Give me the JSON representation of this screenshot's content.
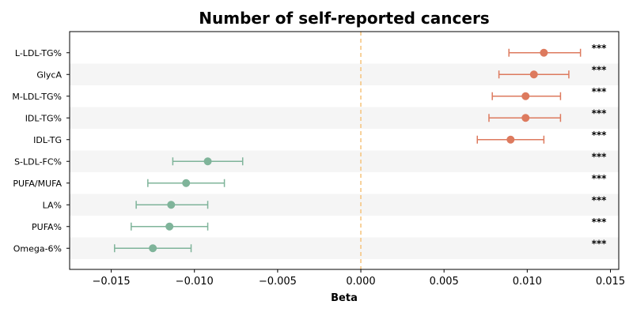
{
  "chart_data": {
    "type": "scatter",
    "title": "Number of self-reported cancers",
    "xlabel": "Beta",
    "ylabel": "",
    "xlim": [
      -0.0175,
      0.0155
    ],
    "x_ticks": [
      -0.015,
      -0.01,
      -0.005,
      0.0,
      0.005,
      0.01,
      0.015
    ],
    "x_tick_labels": [
      "−0.015",
      "−0.010",
      "−0.005",
      "0.000",
      "0.005",
      "0.010",
      "0.015"
    ],
    "reference_line": 0.0,
    "grid": false,
    "row_shading": "alternating",
    "colors": {
      "positive": "#dd7a5e",
      "negative": "#7fb49a",
      "reference": "#f5c27a",
      "band": "#f5f5f5"
    },
    "rows": [
      {
        "label": "L-LDL-TG%",
        "beta": 0.011,
        "ci_low": 0.0089,
        "ci_high": 0.0132,
        "significance": "***"
      },
      {
        "label": "GlycA",
        "beta": 0.0104,
        "ci_low": 0.0083,
        "ci_high": 0.0125,
        "significance": "***"
      },
      {
        "label": "M-LDL-TG%",
        "beta": 0.0099,
        "ci_low": 0.0079,
        "ci_high": 0.012,
        "significance": "***"
      },
      {
        "label": "IDL-TG%",
        "beta": 0.0099,
        "ci_low": 0.0077,
        "ci_high": 0.012,
        "significance": "***"
      },
      {
        "label": "IDL-TG",
        "beta": 0.009,
        "ci_low": 0.007,
        "ci_high": 0.011,
        "significance": "***"
      },
      {
        "label": "S-LDL-FC%",
        "beta": -0.0092,
        "ci_low": -0.0113,
        "ci_high": -0.0071,
        "significance": "***"
      },
      {
        "label": "PUFA/MUFA",
        "beta": -0.0105,
        "ci_low": -0.0128,
        "ci_high": -0.0082,
        "significance": "***"
      },
      {
        "label": "LA%",
        "beta": -0.0114,
        "ci_low": -0.0135,
        "ci_high": -0.0092,
        "significance": "***"
      },
      {
        "label": "PUFA%",
        "beta": -0.0115,
        "ci_low": -0.0138,
        "ci_high": -0.0092,
        "significance": "***"
      },
      {
        "label": "Omega-6%",
        "beta": -0.0125,
        "ci_low": -0.0148,
        "ci_high": -0.0102,
        "significance": "***"
      }
    ]
  }
}
